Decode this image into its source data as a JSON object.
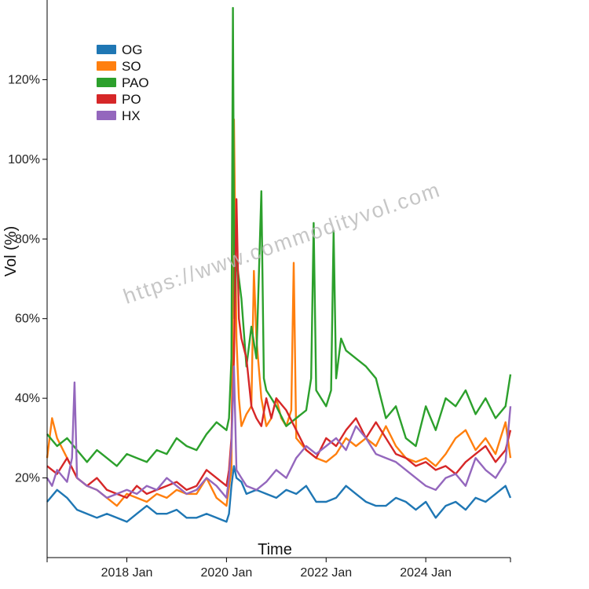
{
  "chart_data": {
    "type": "line",
    "xlabel": "Time",
    "ylabel": "Vol (%)",
    "watermark": "https://www.commodityvol.com",
    "xlim": [
      2016.4,
      2025.7
    ],
    "ylim": [
      0,
      140
    ],
    "x_ticks": [
      {
        "value": 2018.0,
        "label": "2018 Jan"
      },
      {
        "value": 2020.0,
        "label": "2020 Jan"
      },
      {
        "value": 2022.0,
        "label": "2022 Jan"
      },
      {
        "value": 2024.0,
        "label": "2024 Jan"
      }
    ],
    "x_minor_ticks": [
      2016.4,
      2025.7
    ],
    "y_ticks": [
      {
        "value": 20,
        "label": "20%"
      },
      {
        "value": 40,
        "label": "40%"
      },
      {
        "value": 60,
        "label": "60%"
      },
      {
        "value": 80,
        "label": "80%"
      },
      {
        "value": 100,
        "label": "100%"
      },
      {
        "value": 120,
        "label": "120%"
      }
    ],
    "legend_position": "top-left",
    "series": [
      {
        "name": "OG",
        "color": "#1f77b4",
        "x": [
          2016.4,
          2016.6,
          2016.8,
          2017.0,
          2017.2,
          2017.4,
          2017.6,
          2017.8,
          2018.0,
          2018.2,
          2018.4,
          2018.6,
          2018.8,
          2019.0,
          2019.2,
          2019.4,
          2019.6,
          2019.8,
          2020.0,
          2020.05,
          2020.1,
          2020.15,
          2020.2,
          2020.3,
          2020.4,
          2020.6,
          2020.8,
          2021.0,
          2021.2,
          2021.4,
          2021.6,
          2021.8,
          2022.0,
          2022.2,
          2022.4,
          2022.6,
          2022.8,
          2023.0,
          2023.2,
          2023.4,
          2023.6,
          2023.8,
          2024.0,
          2024.2,
          2024.4,
          2024.6,
          2024.8,
          2025.0,
          2025.2,
          2025.4,
          2025.6,
          2025.7
        ],
        "y": [
          14,
          17,
          15,
          12,
          11,
          10,
          11,
          10,
          9,
          11,
          13,
          11,
          11,
          12,
          10,
          10,
          11,
          10,
          9,
          11,
          18,
          23,
          20,
          19,
          16,
          17,
          16,
          15,
          17,
          16,
          18,
          14,
          14,
          15,
          18,
          16,
          14,
          13,
          13,
          15,
          14,
          12,
          14,
          10,
          13,
          14,
          12,
          15,
          14,
          16,
          18,
          15
        ]
      },
      {
        "name": "SO",
        "color": "#ff7f0e",
        "x": [
          2016.4,
          2016.5,
          2016.6,
          2016.8,
          2017.0,
          2017.2,
          2017.4,
          2017.6,
          2017.8,
          2018.0,
          2018.2,
          2018.4,
          2018.6,
          2018.8,
          2019.0,
          2019.2,
          2019.4,
          2019.6,
          2019.8,
          2020.0,
          2020.1,
          2020.15,
          2020.2,
          2020.25,
          2020.3,
          2020.4,
          2020.5,
          2020.55,
          2020.6,
          2020.7,
          2020.8,
          2020.9,
          2021.0,
          2021.1,
          2021.2,
          2021.3,
          2021.35,
          2021.4,
          2021.6,
          2021.8,
          2022.0,
          2022.2,
          2022.4,
          2022.6,
          2022.8,
          2023.0,
          2023.2,
          2023.4,
          2023.6,
          2023.8,
          2024.0,
          2024.2,
          2024.4,
          2024.6,
          2024.8,
          2025.0,
          2025.2,
          2025.4,
          2025.6,
          2025.7
        ],
        "y": [
          25,
          35,
          30,
          25,
          20,
          18,
          17,
          15,
          13,
          16,
          15,
          14,
          16,
          15,
          17,
          16,
          16,
          20,
          15,
          13,
          22,
          110,
          55,
          40,
          33,
          36,
          38,
          72,
          55,
          40,
          33,
          35,
          40,
          35,
          33,
          37,
          74,
          30,
          27,
          25,
          24,
          26,
          30,
          28,
          30,
          28,
          33,
          28,
          25,
          24,
          25,
          23,
          26,
          30,
          32,
          27,
          30,
          26,
          34,
          25
        ]
      },
      {
        "name": "PAO",
        "color": "#2ca02c",
        "x": [
          2016.4,
          2016.6,
          2016.8,
          2017.0,
          2017.2,
          2017.4,
          2017.6,
          2017.8,
          2018.0,
          2018.2,
          2018.4,
          2018.6,
          2018.8,
          2019.0,
          2019.2,
          2019.4,
          2019.6,
          2019.8,
          2019.9,
          2020.0,
          2020.05,
          2020.1,
          2020.13,
          2020.16,
          2020.2,
          2020.3,
          2020.4,
          2020.5,
          2020.6,
          2020.7,
          2020.75,
          2020.8,
          2020.9,
          2021.0,
          2021.2,
          2021.4,
          2021.6,
          2021.7,
          2021.75,
          2021.8,
          2021.9,
          2022.0,
          2022.1,
          2022.15,
          2022.2,
          2022.3,
          2022.4,
          2022.6,
          2022.8,
          2023.0,
          2023.2,
          2023.4,
          2023.6,
          2023.8,
          2024.0,
          2024.2,
          2024.4,
          2024.6,
          2024.8,
          2025.0,
          2025.2,
          2025.4,
          2025.6,
          2025.7
        ],
        "y": [
          31,
          28,
          30,
          27,
          24,
          27,
          25,
          23,
          26,
          25,
          24,
          27,
          26,
          30,
          28,
          27,
          31,
          34,
          33,
          32,
          35,
          50,
          138,
          60,
          75,
          65,
          48,
          58,
          50,
          92,
          45,
          42,
          40,
          38,
          33,
          35,
          37,
          45,
          84,
          42,
          40,
          38,
          42,
          82,
          45,
          55,
          52,
          50,
          48,
          45,
          35,
          38,
          30,
          28,
          38,
          32,
          40,
          38,
          42,
          36,
          40,
          35,
          38,
          46
        ]
      },
      {
        "name": "PO",
        "color": "#d62728",
        "x": [
          2016.4,
          2016.6,
          2016.8,
          2017.0,
          2017.2,
          2017.4,
          2017.6,
          2017.8,
          2018.0,
          2018.2,
          2018.4,
          2018.6,
          2018.8,
          2019.0,
          2019.2,
          2019.4,
          2019.6,
          2019.8,
          2020.0,
          2020.05,
          2020.1,
          2020.15,
          2020.2,
          2020.25,
          2020.3,
          2020.4,
          2020.5,
          2020.6,
          2020.7,
          2020.8,
          2020.9,
          2021.0,
          2021.2,
          2021.4,
          2021.6,
          2021.8,
          2022.0,
          2022.2,
          2022.4,
          2022.6,
          2022.8,
          2023.0,
          2023.2,
          2023.4,
          2023.6,
          2023.8,
          2024.0,
          2024.2,
          2024.4,
          2024.6,
          2024.8,
          2025.0,
          2025.2,
          2025.4,
          2025.6,
          2025.7
        ],
        "y": [
          23,
          21,
          25,
          20,
          18,
          20,
          17,
          16,
          15,
          18,
          16,
          17,
          18,
          19,
          17,
          18,
          22,
          20,
          18,
          22,
          30,
          50,
          90,
          60,
          55,
          50,
          38,
          35,
          33,
          40,
          35,
          40,
          37,
          32,
          27,
          25,
          30,
          28,
          32,
          35,
          30,
          34,
          30,
          26,
          25,
          23,
          24,
          22,
          23,
          21,
          24,
          26,
          28,
          24,
          27,
          32
        ]
      },
      {
        "name": "HX",
        "color": "#9467bd",
        "x": [
          2016.4,
          2016.5,
          2016.6,
          2016.8,
          2016.9,
          2016.95,
          2017.0,
          2017.2,
          2017.4,
          2017.6,
          2017.8,
          2018.0,
          2018.2,
          2018.4,
          2018.6,
          2018.8,
          2019.0,
          2019.2,
          2019.4,
          2019.6,
          2019.8,
          2020.0,
          2020.05,
          2020.1,
          2020.15,
          2020.2,
          2020.3,
          2020.4,
          2020.6,
          2020.8,
          2021.0,
          2021.2,
          2021.4,
          2021.6,
          2021.8,
          2022.0,
          2022.2,
          2022.4,
          2022.6,
          2022.8,
          2023.0,
          2023.2,
          2023.4,
          2023.6,
          2023.8,
          2024.0,
          2024.2,
          2024.4,
          2024.6,
          2024.8,
          2025.0,
          2025.2,
          2025.4,
          2025.6,
          2025.7
        ],
        "y": [
          20,
          18,
          22,
          19,
          25,
          44,
          20,
          18,
          17,
          15,
          16,
          17,
          16,
          18,
          17,
          20,
          18,
          16,
          17,
          20,
          18,
          15,
          20,
          28,
          48,
          22,
          20,
          18,
          17,
          19,
          22,
          20,
          25,
          28,
          26,
          28,
          30,
          27,
          33,
          30,
          26,
          25,
          24,
          22,
          20,
          18,
          17,
          20,
          21,
          18,
          25,
          22,
          20,
          24,
          38
        ]
      }
    ]
  }
}
